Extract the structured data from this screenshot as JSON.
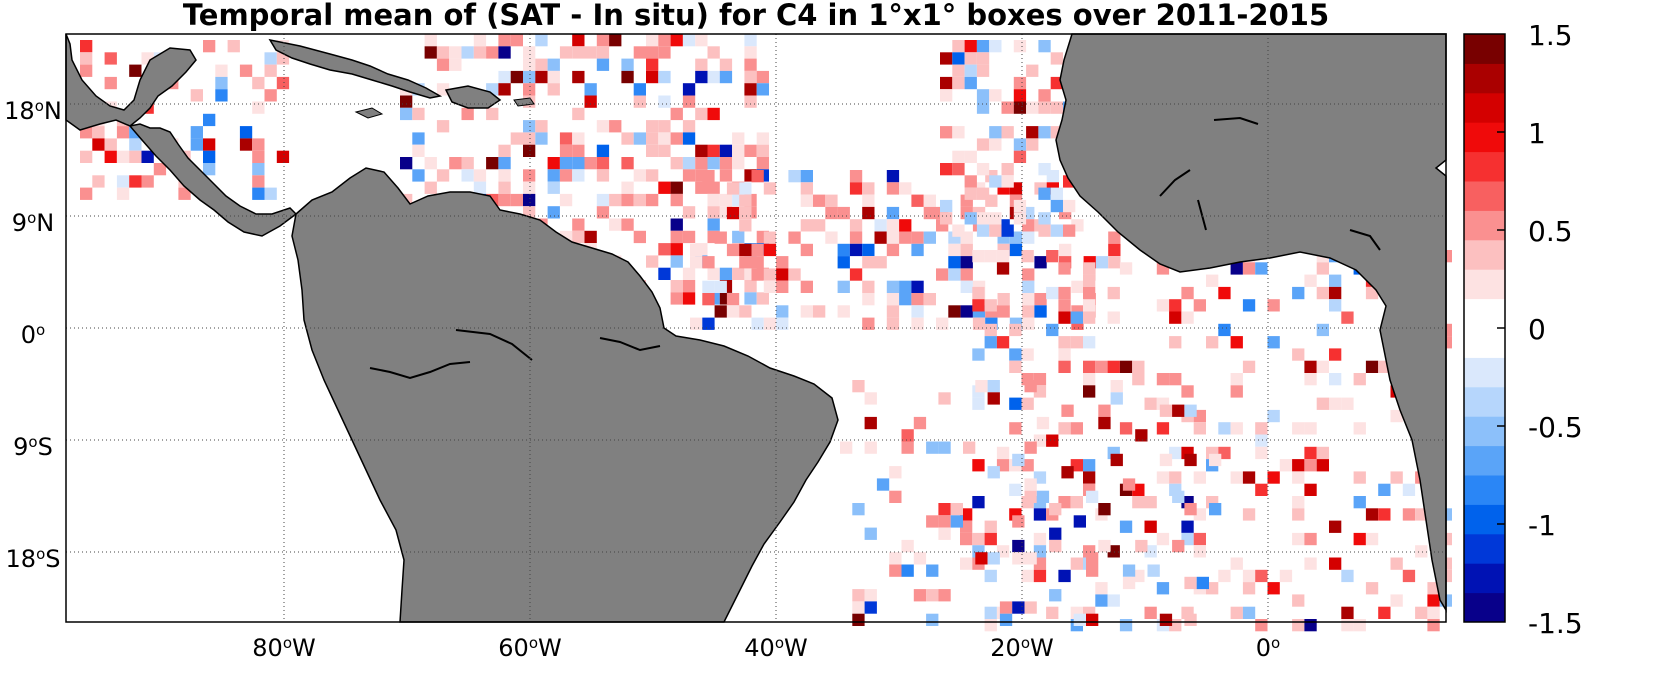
{
  "title": "Temporal mean of (SAT - In situ) for C4 in 1°x1° boxes over 2011-2015",
  "colors": {
    "land": "#808080",
    "ocean": "#ffffff",
    "grid": "#444444",
    "colormap": [
      "#08008a",
      "#0012b4",
      "#0038d8",
      "#0062ec",
      "#2a86f6",
      "#5aa4f8",
      "#8cc0fa",
      "#b6d6fc",
      "#dae8fc",
      "#ffffff",
      "#ffffff",
      "#fde2e2",
      "#fcc0c0",
      "#fa9090",
      "#f86060",
      "#f63030",
      "#f00a0a",
      "#d40000",
      "#aa0000",
      "#780000"
    ]
  },
  "latitude_ticks": [
    {
      "deg": "18",
      "hemi": "N"
    },
    {
      "deg": "9",
      "hemi": "N"
    },
    {
      "deg": "0",
      "hemi": ""
    },
    {
      "deg": "9",
      "hemi": "S"
    },
    {
      "deg": "18",
      "hemi": "S"
    }
  ],
  "longitude_ticks": [
    {
      "deg": "80",
      "hemi": "W"
    },
    {
      "deg": "60",
      "hemi": "W"
    },
    {
      "deg": "40",
      "hemi": "W"
    },
    {
      "deg": "20",
      "hemi": "W"
    },
    {
      "deg": "0",
      "hemi": ""
    }
  ],
  "colorbar": {
    "min": -1.5,
    "max": 1.5,
    "tick_labels": [
      "1.5",
      "1",
      "0.5",
      "0",
      "-0.5",
      "-1",
      "-1.5"
    ]
  }
}
